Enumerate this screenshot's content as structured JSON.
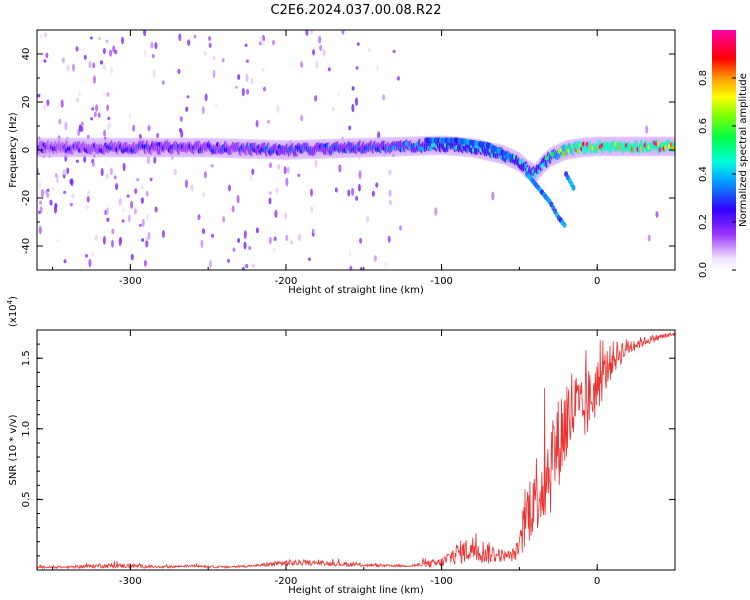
{
  "chart_data": [
    {
      "type": "heatmap",
      "title": "C2E6.2024.037.00.08.R22",
      "xlabel": "Height of straight line (km)",
      "ylabel": "Frequency (Hz)",
      "xlim": [
        -360,
        50
      ],
      "ylim": [
        -50,
        50
      ],
      "x_ticks": [
        -300,
        -200,
        -100,
        0
      ],
      "x_tick_labels": [
        "-300",
        "-200",
        "-100",
        "0"
      ],
      "y_ticks": [
        -40,
        -20,
        0,
        20,
        40
      ],
      "y_tick_labels": [
        "-40",
        "-20",
        "0",
        "20",
        "40"
      ],
      "colorbar": {
        "label": "Normalized spectral amplitude",
        "range": [
          0.0,
          1.0
        ],
        "ticks": [
          0.0,
          0.2,
          0.4,
          0.6,
          0.8
        ],
        "tick_labels": [
          "0.0",
          "0.2",
          "0.4",
          "0.6",
          "0.8"
        ],
        "colormap": "rainbow (white-violet-blue-cyan-green-yellow-red-magenta)"
      },
      "ridge": {
        "x": [
          -360,
          -300,
          -250,
          -200,
          -150,
          -120,
          -100,
          -80,
          -60,
          -50,
          -45,
          -40,
          -35,
          -30,
          -20,
          -10,
          0,
          20,
          50
        ],
        "y": [
          1,
          1,
          1,
          0,
          1,
          1.5,
          2,
          1,
          -2,
          -5,
          -8,
          -10,
          -6,
          -3,
          0,
          1,
          1.5,
          1.5,
          1.5
        ],
        "amplitude": [
          0.25,
          0.3,
          0.3,
          0.35,
          0.35,
          0.4,
          0.5,
          0.5,
          0.55,
          0.5,
          0.45,
          0.45,
          0.5,
          0.6,
          0.8,
          0.9,
          0.95,
          0.97,
          0.98
        ]
      },
      "branches": [
        {
          "x": [
            -110,
            -90,
            -70,
            -55
          ],
          "y": [
            4,
            4,
            2,
            -3
          ]
        },
        {
          "x": [
            -45,
            -40,
            -35,
            -30,
            -25,
            -20
          ],
          "y": [
            -10,
            -14,
            -18,
            -22,
            -28,
            -32
          ]
        },
        {
          "x": [
            -20,
            -15
          ],
          "y": [
            -10,
            -16
          ]
        }
      ],
      "background_noise": "diffuse violet speckle, densest for x < -280 and in vertical streaks near x = -180 to -130"
    },
    {
      "type": "line",
      "xlabel": "Height of straight line (km)",
      "ylabel": "SNR (10 * v/v)",
      "y_multiplier": "(x10^4)",
      "y_multiplier_base": "(x10",
      "y_multiplier_exp": "4",
      "y_multiplier_close": ")",
      "xlim": [
        -360,
        50
      ],
      "ylim": [
        0,
        1.7
      ],
      "x_ticks": [
        -300,
        -200,
        -100,
        0
      ],
      "x_tick_labels": [
        "-300",
        "-200",
        "-100",
        "0"
      ],
      "y_ticks": [
        0.5,
        1.0,
        1.5
      ],
      "y_tick_labels": [
        "0.5",
        "1.0",
        "1.5"
      ],
      "series": [
        {
          "color": "#ee3333",
          "x": [
            -360,
            -340,
            -320,
            -300,
            -280,
            -260,
            -240,
            -220,
            -200,
            -180,
            -160,
            -140,
            -120,
            -100,
            -90,
            -80,
            -70,
            -60,
            -55,
            -50,
            -45,
            -40,
            -35,
            -30,
            -25,
            -20,
            -15,
            -10,
            -5,
            0,
            5,
            10,
            20,
            30,
            40,
            50
          ],
          "y": [
            0.02,
            0.02,
            0.03,
            0.03,
            0.02,
            0.03,
            0.02,
            0.03,
            0.05,
            0.05,
            0.04,
            0.03,
            0.03,
            0.05,
            0.12,
            0.15,
            0.12,
            0.1,
            0.1,
            0.15,
            0.4,
            0.55,
            0.6,
            0.75,
            0.9,
            1.05,
            1.15,
            1.1,
            1.2,
            1.3,
            1.4,
            1.5,
            1.58,
            1.62,
            1.65,
            1.67
          ],
          "noise_amplitude": [
            0.01,
            0.01,
            0.02,
            0.02,
            0.01,
            0.01,
            0.01,
            0.01,
            0.03,
            0.02,
            0.02,
            0.01,
            0.01,
            0.05,
            0.1,
            0.12,
            0.1,
            0.05,
            0.05,
            0.1,
            0.3,
            0.35,
            0.4,
            0.45,
            0.4,
            0.45,
            0.4,
            0.3,
            0.3,
            0.25,
            0.2,
            0.15,
            0.08,
            0.04,
            0.03,
            0.02
          ]
        }
      ]
    }
  ]
}
